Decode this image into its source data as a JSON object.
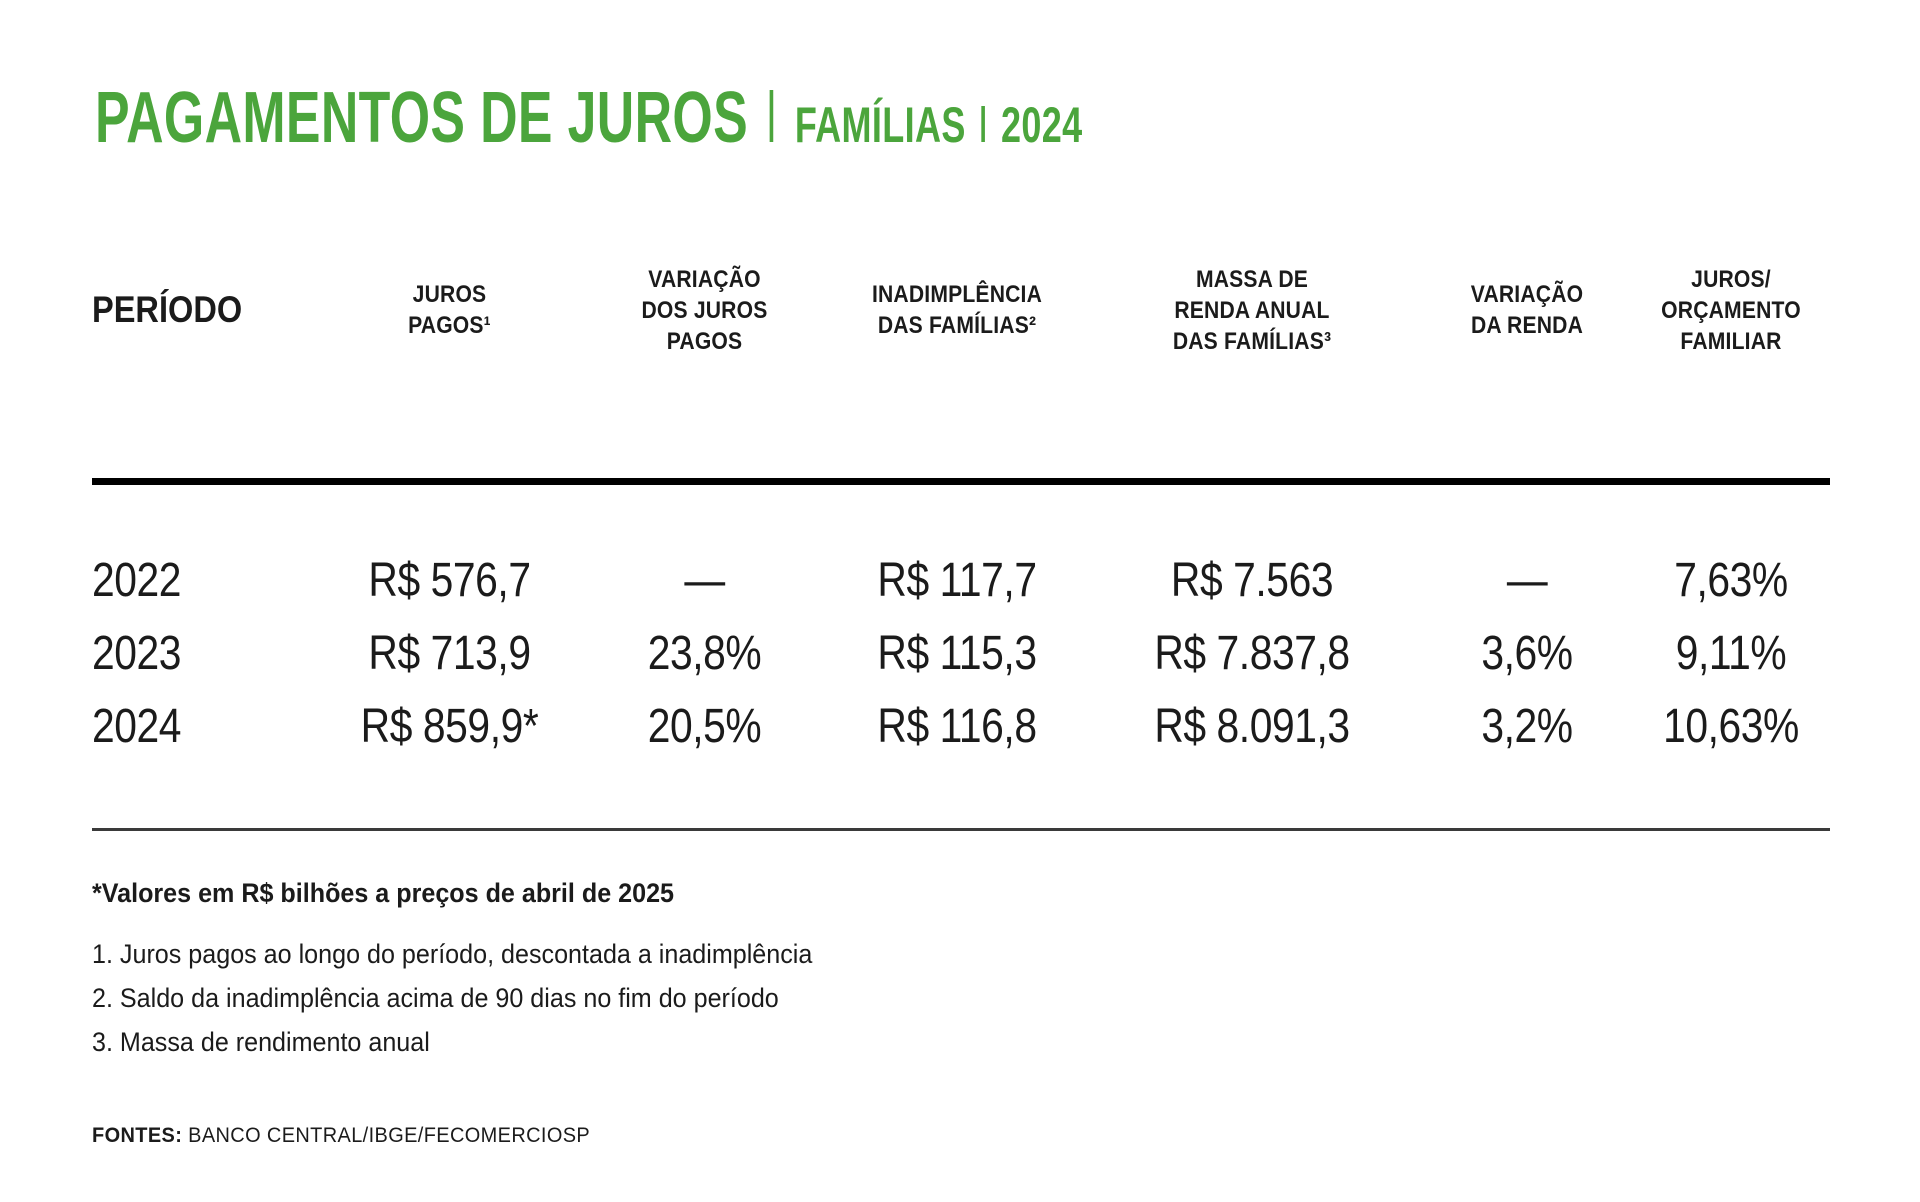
{
  "colors": {
    "accent": "#4ba53c",
    "text": "#1b1b1b",
    "rule-strong": "#000000",
    "rule-light": "#3a3a3a"
  },
  "title": {
    "main": "PAGAMENTOS DE JUROS",
    "sub_family": "FAMÍLIAS",
    "sub_year": "2024"
  },
  "table": {
    "headers": [
      "PERÍODO",
      "JUROS\nPAGOS¹",
      "VARIAÇÃO\nDOS JUROS\nPAGOS",
      "INADIMPLÊNCIA\nDAS FAMÍLIAS²",
      "MASSA DE\nRENDA ANUAL\nDAS FAMÍLIAS³",
      "VARIAÇÃO\nDA RENDA",
      "JUROS/\nORÇAMENTO\nFAMILIAR"
    ],
    "rows": [
      {
        "cells": [
          "2022",
          "R$ 576,7",
          "—",
          "R$ 117,7",
          "R$ 7.563",
          "—",
          "7,63%"
        ]
      },
      {
        "cells": [
          "2023",
          "R$ 713,9",
          "23,8%",
          "R$ 115,3",
          "R$ 7.837,8",
          "3,6%",
          "9,11%"
        ]
      },
      {
        "cells": [
          "2024",
          "R$ 859,9*",
          "20,5%",
          "R$ 116,8",
          "R$ 8.091,3",
          "3,2%",
          "10,63%"
        ]
      }
    ]
  },
  "footnotes": {
    "star": "*Valores em R$ bilhões a preços de abril de 2025",
    "items": [
      "1. Juros pagos ao longo do período, descontada a inadimplência",
      "2. Saldo da inadimplência acima de 90 dias no fim do período",
      "3. Massa de rendimento anual"
    ]
  },
  "sources": {
    "label": "FONTES:",
    "text": " BANCO CENTRAL/IBGE/FECOMERCIOSP"
  },
  "chart_data": {
    "type": "table",
    "title": "PAGAMENTOS DE JUROS | FAMÍLIAS | 2024",
    "columns": [
      "PERÍODO",
      "JUROS PAGOS¹",
      "VARIAÇÃO DOS JUROS PAGOS",
      "INADIMPLÊNCIA DAS FAMÍLIAS²",
      "MASSA DE RENDA ANUAL DAS FAMÍLIAS³",
      "VARIAÇÃO DA RENDA",
      "JUROS/ORÇAMENTO FAMILIAR"
    ],
    "rows": [
      [
        "2022",
        "R$ 576,7",
        null,
        "R$ 117,7",
        "R$ 7.563",
        null,
        "7,63%"
      ],
      [
        "2023",
        "R$ 713,9",
        "23,8%",
        "R$ 115,3",
        "R$ 7.837,8",
        "3,6%",
        "9,11%"
      ],
      [
        "2024",
        "R$ 859,9*",
        "20,5%",
        "R$ 116,8",
        "R$ 8.091,3",
        "3,2%",
        "10,63%"
      ]
    ],
    "units": "R$ bilhões a preços de abril de 2025",
    "notes": [
      "1. Juros pagos ao longo do período, descontada a inadimplência",
      "2. Saldo da inadimplência acima de 90 dias no fim do período",
      "3. Massa de rendimento anual"
    ],
    "sources": "BANCO CENTRAL/IBGE/FECOMERCIOSP"
  }
}
